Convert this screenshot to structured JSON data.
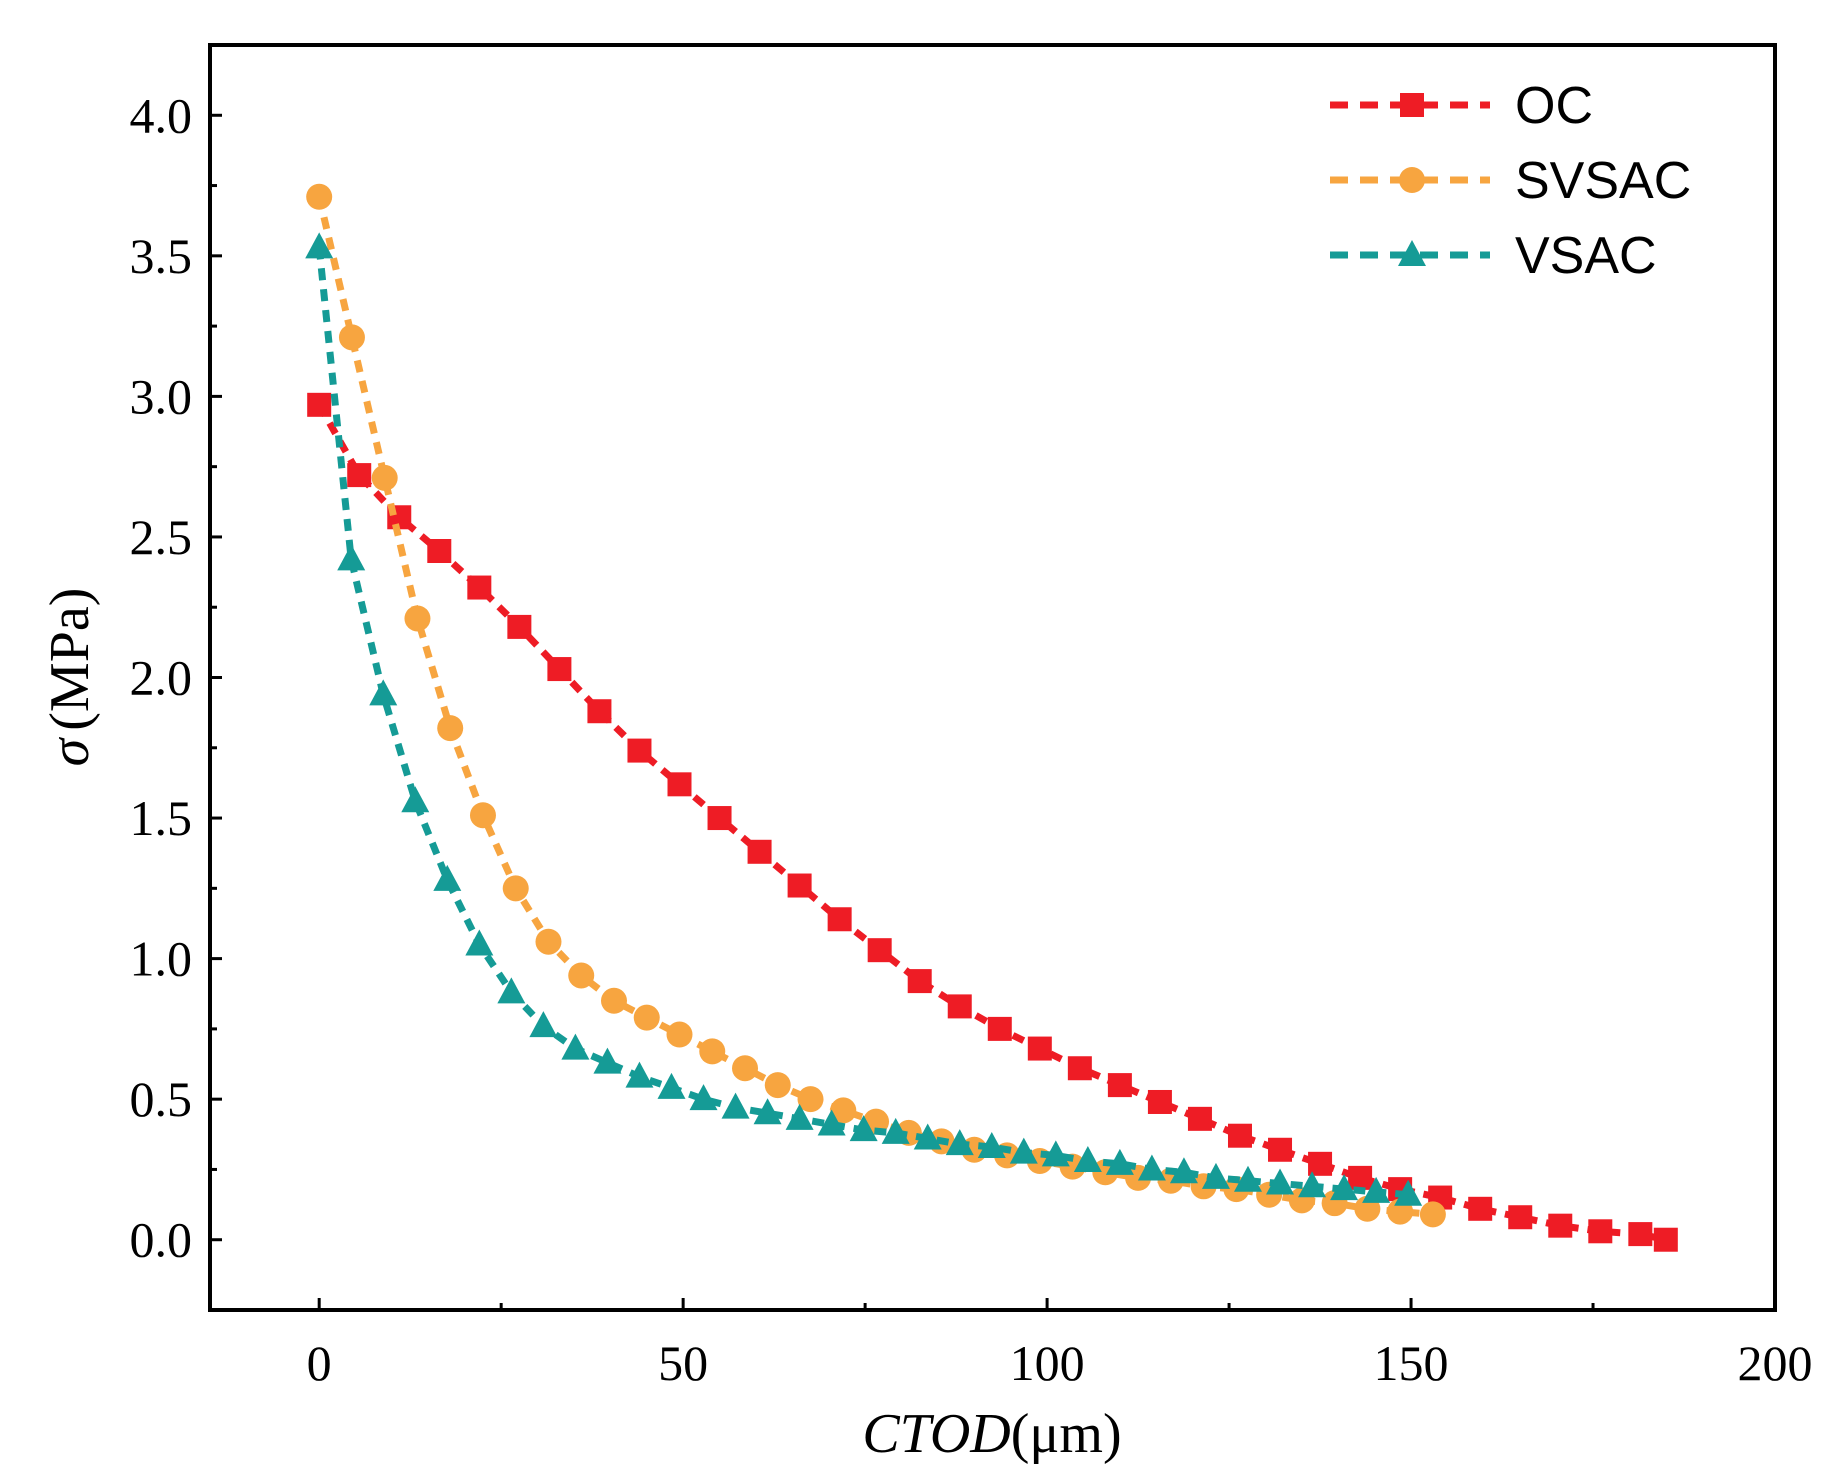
{
  "chart_data": {
    "type": "line",
    "title": "",
    "xlabel": "CTOD(μm)",
    "xlabel_italic": "CTOD",
    "xlabel_unit": "(μm)",
    "ylabel": "σ (MPa)",
    "ylabel_symbol": "σ",
    "ylabel_unit": "(MPa)",
    "xlim": [
      -15,
      200
    ],
    "ylim": [
      -0.25,
      4.25
    ],
    "xticks": [
      0,
      50,
      100,
      150,
      200
    ],
    "xtick_labels": [
      "0",
      "50",
      "100",
      "150",
      "200"
    ],
    "yticks": [
      0,
      0.5,
      1,
      1.5,
      2,
      2.5,
      3,
      3.5,
      4
    ],
    "ytick_labels": [
      "0.0",
      "0.5",
      "1.0",
      "1.5",
      "2.0",
      "2.5",
      "3.0",
      "3.5",
      "4.0"
    ],
    "grid": false,
    "legend_position": "top-right",
    "series": [
      {
        "name": "OC",
        "color": "#ee1c25",
        "marker": "square",
        "x": [
          0,
          5.5,
          11,
          16.5,
          22,
          27.5,
          33,
          38.5,
          44,
          49.5,
          55,
          60.5,
          66,
          71.5,
          77,
          82.5,
          88,
          93.5,
          99,
          104.5,
          110,
          115.5,
          121,
          126.5,
          132,
          137.5,
          143,
          148.5,
          154,
          159.5,
          165,
          170.5,
          176,
          181.5,
          185
        ],
        "y": [
          2.97,
          2.72,
          2.57,
          2.45,
          2.32,
          2.18,
          2.03,
          1.88,
          1.74,
          1.62,
          1.5,
          1.38,
          1.26,
          1.14,
          1.03,
          0.92,
          0.83,
          0.75,
          0.68,
          0.61,
          0.55,
          0.49,
          0.43,
          0.37,
          0.32,
          0.27,
          0.22,
          0.18,
          0.15,
          0.11,
          0.08,
          0.05,
          0.03,
          0.02,
          0.0
        ]
      },
      {
        "name": "SVSAC",
        "color": "#f7a540",
        "marker": "circle",
        "x": [
          0,
          4.5,
          9,
          13.5,
          18,
          22.5,
          27,
          31.5,
          36,
          40.5,
          45,
          49.5,
          54,
          58.5,
          63,
          67.5,
          72,
          76.5,
          81,
          85.5,
          90,
          94.5,
          99,
          103.5,
          108,
          112.5,
          117,
          121.5,
          126,
          130.5,
          135,
          139.5,
          144,
          148.5,
          153
        ],
        "y": [
          3.71,
          3.21,
          2.71,
          2.21,
          1.82,
          1.51,
          1.25,
          1.06,
          0.94,
          0.85,
          0.79,
          0.73,
          0.67,
          0.61,
          0.55,
          0.5,
          0.46,
          0.42,
          0.38,
          0.35,
          0.32,
          0.3,
          0.28,
          0.26,
          0.24,
          0.22,
          0.21,
          0.19,
          0.18,
          0.16,
          0.14,
          0.13,
          0.11,
          0.1,
          0.09
        ]
      },
      {
        "name": "VSAC",
        "color": "#159b96",
        "marker": "triangle",
        "x": [
          0,
          4.4,
          8.8,
          13.2,
          17.6,
          22,
          26.4,
          30.8,
          35.2,
          39.6,
          44,
          48.4,
          52.8,
          57.2,
          61.6,
          66,
          70.4,
          74.8,
          79.2,
          83.6,
          88,
          92.4,
          96.8,
          101.2,
          105.6,
          110,
          114.4,
          118.8,
          123.2,
          127.6,
          132,
          136.4,
          140.8,
          145.2,
          149.6
        ],
        "y": [
          3.53,
          2.42,
          1.94,
          1.56,
          1.28,
          1.05,
          0.88,
          0.76,
          0.68,
          0.63,
          0.58,
          0.54,
          0.5,
          0.47,
          0.45,
          0.43,
          0.41,
          0.39,
          0.38,
          0.36,
          0.34,
          0.33,
          0.31,
          0.3,
          0.28,
          0.27,
          0.25,
          0.24,
          0.22,
          0.21,
          0.2,
          0.19,
          0.18,
          0.17,
          0.16
        ]
      }
    ]
  }
}
